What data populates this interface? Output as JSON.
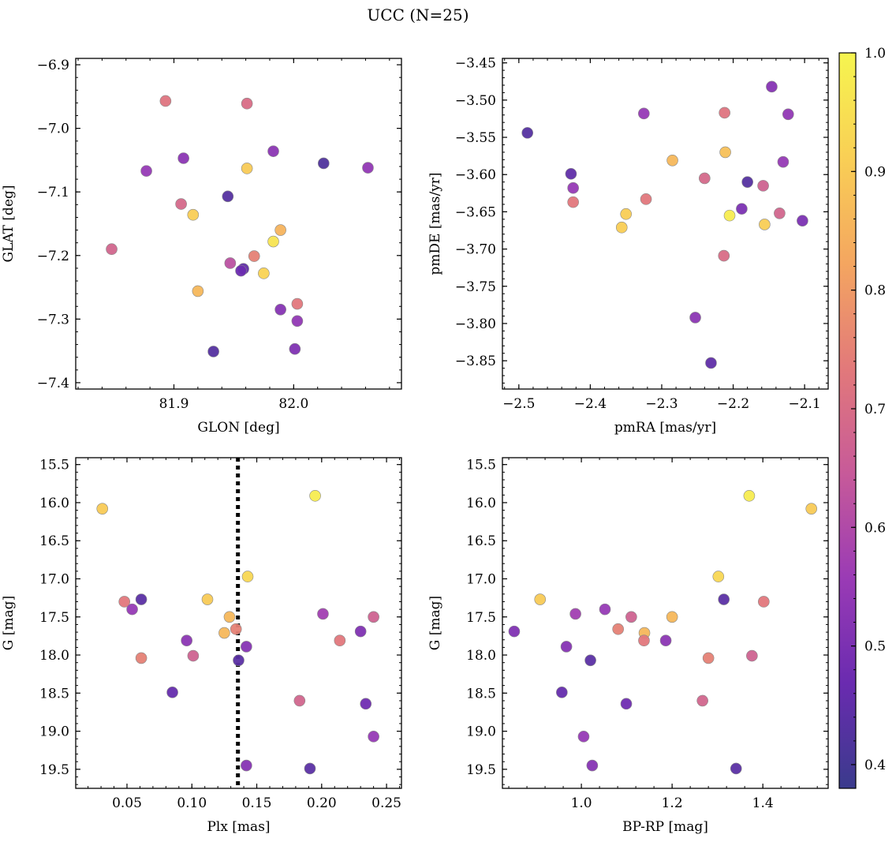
{
  "suptitle": "UCC (N=25)",
  "colormap": {
    "name": "plasma-truncated",
    "stops": [
      "#3a3b8c",
      "#6a2bb0",
      "#9a3bb5",
      "#c75a99",
      "#e2797a",
      "#f4a660",
      "#f9cf55",
      "#f6f54f"
    ],
    "range": [
      0.38,
      1.0
    ],
    "ticks": [
      "0.4",
      "0.5",
      "0.6",
      "0.7",
      "0.8",
      "0.9",
      "1.0"
    ]
  },
  "marker": {
    "edge_color": "#888888"
  },
  "chart_data": [
    {
      "type": "scatter",
      "xlabel": "GLON [deg]",
      "ylabel": "GLAT [deg]",
      "xlim": [
        81.818,
        82.09
      ],
      "ylim": [
        -7.41,
        -6.89
      ],
      "xticks": [
        "81.9",
        "82.0"
      ],
      "yticks": [
        "-6.9",
        "-7.0",
        "-7.1",
        "-7.2",
        "-7.3",
        "-7.4"
      ],
      "points": [
        {
          "x": 81.893,
          "y": -6.957,
          "c": 0.72
        },
        {
          "x": 81.961,
          "y": -6.961,
          "c": 0.7
        },
        {
          "x": 81.983,
          "y": -7.036,
          "c": 0.53
        },
        {
          "x": 82.025,
          "y": -7.055,
          "c": 0.42
        },
        {
          "x": 82.062,
          "y": -7.062,
          "c": 0.54
        },
        {
          "x": 81.961,
          "y": -7.063,
          "c": 0.9
        },
        {
          "x": 81.908,
          "y": -7.047,
          "c": 0.53
        },
        {
          "x": 81.877,
          "y": -7.067,
          "c": 0.55
        },
        {
          "x": 81.945,
          "y": -7.107,
          "c": 0.43
        },
        {
          "x": 81.906,
          "y": -7.119,
          "c": 0.69
        },
        {
          "x": 81.916,
          "y": -7.136,
          "c": 0.91
        },
        {
          "x": 81.989,
          "y": -7.16,
          "c": 0.85
        },
        {
          "x": 81.983,
          "y": -7.178,
          "c": 0.96
        },
        {
          "x": 81.848,
          "y": -7.19,
          "c": 0.68
        },
        {
          "x": 81.967,
          "y": -7.201,
          "c": 0.75
        },
        {
          "x": 81.947,
          "y": -7.212,
          "c": 0.62
        },
        {
          "x": 81.958,
          "y": -7.221,
          "c": 0.45
        },
        {
          "x": 81.956,
          "y": -7.224,
          "c": 0.47
        },
        {
          "x": 81.975,
          "y": -7.228,
          "c": 0.92
        },
        {
          "x": 81.92,
          "y": -7.256,
          "c": 0.86
        },
        {
          "x": 82.003,
          "y": -7.276,
          "c": 0.73
        },
        {
          "x": 81.989,
          "y": -7.285,
          "c": 0.52
        },
        {
          "x": 82.003,
          "y": -7.303,
          "c": 0.54
        },
        {
          "x": 82.001,
          "y": -7.347,
          "c": 0.51
        },
        {
          "x": 81.933,
          "y": -7.351,
          "c": 0.43
        }
      ]
    },
    {
      "type": "scatter",
      "xlabel": "pmRA [mas/yr]",
      "ylabel": "pmDE [mas/yr]",
      "xlim": [
        -2.523,
        -2.067
      ],
      "ylim": [
        -3.888,
        -3.444
      ],
      "xticks": [
        "-2.5",
        "-2.4",
        "-2.3",
        "-2.2",
        "-2.1"
      ],
      "yticks": [
        "-3.45",
        "-3.50",
        "-3.55",
        "-3.60",
        "-3.65",
        "-3.70",
        "-3.75",
        "-3.80",
        "-3.85"
      ],
      "points": [
        {
          "x": -2.488,
          "y": -3.544,
          "c": 0.43
        },
        {
          "x": -2.146,
          "y": -3.482,
          "c": 0.52
        },
        {
          "x": -2.123,
          "y": -3.519,
          "c": 0.54
        },
        {
          "x": -2.325,
          "y": -3.518,
          "c": 0.55
        },
        {
          "x": -2.212,
          "y": -3.517,
          "c": 0.72
        },
        {
          "x": -2.211,
          "y": -3.57,
          "c": 0.88
        },
        {
          "x": -2.285,
          "y": -3.581,
          "c": 0.86
        },
        {
          "x": -2.13,
          "y": -3.583,
          "c": 0.55
        },
        {
          "x": -2.427,
          "y": -3.599,
          "c": 0.45
        },
        {
          "x": -2.24,
          "y": -3.605,
          "c": 0.69
        },
        {
          "x": -2.18,
          "y": -3.61,
          "c": 0.43
        },
        {
          "x": -2.424,
          "y": -3.618,
          "c": 0.55
        },
        {
          "x": -2.158,
          "y": -3.615,
          "c": 0.67
        },
        {
          "x": -2.322,
          "y": -3.633,
          "c": 0.73
        },
        {
          "x": -2.424,
          "y": -3.637,
          "c": 0.73
        },
        {
          "x": -2.188,
          "y": -3.646,
          "c": 0.5
        },
        {
          "x": -2.35,
          "y": -3.653,
          "c": 0.91
        },
        {
          "x": -2.135,
          "y": -3.652,
          "c": 0.68
        },
        {
          "x": -2.205,
          "y": -3.655,
          "c": 0.98
        },
        {
          "x": -2.103,
          "y": -3.662,
          "c": 0.5
        },
        {
          "x": -2.356,
          "y": -3.671,
          "c": 0.91
        },
        {
          "x": -2.156,
          "y": -3.667,
          "c": 0.91
        },
        {
          "x": -2.213,
          "y": -3.709,
          "c": 0.7
        },
        {
          "x": -2.253,
          "y": -3.792,
          "c": 0.53
        },
        {
          "x": -2.231,
          "y": -3.853,
          "c": 0.45
        }
      ]
    },
    {
      "type": "scatter",
      "xlabel": "Plx [mas]",
      "ylabel": "G [mag]",
      "xlim": [
        0.0105,
        0.2615
      ],
      "ylim": [
        19.75,
        15.41
      ],
      "y_inverted": true,
      "xticks": [
        "0.05",
        "0.10",
        "0.15",
        "0.20",
        "0.25"
      ],
      "yticks": [
        "15.5",
        "16.0",
        "16.5",
        "17.0",
        "17.5",
        "18.0",
        "18.5",
        "19.0",
        "19.5"
      ],
      "vline": {
        "x": 0.1355,
        "style": "dotted",
        "color": "#000000"
      },
      "points": [
        {
          "x": 0.031,
          "y": 16.08,
          "c": 0.9
        },
        {
          "x": 0.195,
          "y": 15.91,
          "c": 0.98
        },
        {
          "x": 0.143,
          "y": 16.97,
          "c": 0.93
        },
        {
          "x": 0.048,
          "y": 17.3,
          "c": 0.73
        },
        {
          "x": 0.061,
          "y": 17.27,
          "c": 0.44
        },
        {
          "x": 0.112,
          "y": 17.27,
          "c": 0.9
        },
        {
          "x": 0.054,
          "y": 17.4,
          "c": 0.55
        },
        {
          "x": 0.201,
          "y": 17.46,
          "c": 0.57
        },
        {
          "x": 0.24,
          "y": 17.5,
          "c": 0.67
        },
        {
          "x": 0.129,
          "y": 17.5,
          "c": 0.86
        },
        {
          "x": 0.134,
          "y": 17.66,
          "c": 0.75
        },
        {
          "x": 0.125,
          "y": 17.71,
          "c": 0.86
        },
        {
          "x": 0.23,
          "y": 17.69,
          "c": 0.51
        },
        {
          "x": 0.214,
          "y": 17.81,
          "c": 0.73
        },
        {
          "x": 0.096,
          "y": 17.81,
          "c": 0.53
        },
        {
          "x": 0.142,
          "y": 17.89,
          "c": 0.52
        },
        {
          "x": 0.101,
          "y": 18.01,
          "c": 0.67
        },
        {
          "x": 0.061,
          "y": 18.04,
          "c": 0.75
        },
        {
          "x": 0.136,
          "y": 18.07,
          "c": 0.44
        },
        {
          "x": 0.085,
          "y": 18.49,
          "c": 0.46
        },
        {
          "x": 0.183,
          "y": 18.6,
          "c": 0.68
        },
        {
          "x": 0.234,
          "y": 18.64,
          "c": 0.48
        },
        {
          "x": 0.24,
          "y": 19.07,
          "c": 0.55
        },
        {
          "x": 0.142,
          "y": 19.45,
          "c": 0.52
        },
        {
          "x": 0.191,
          "y": 19.49,
          "c": 0.44
        }
      ]
    },
    {
      "type": "scatter",
      "xlabel": "BP-RP [mag]",
      "ylabel": "G [mag]",
      "xlim": [
        0.826,
        1.544
      ],
      "ylim": [
        19.75,
        15.41
      ],
      "y_inverted": true,
      "xticks": [
        "1.0",
        "1.2",
        "1.4"
      ],
      "yticks": [
        "15.5",
        "16.0",
        "16.5",
        "17.0",
        "17.5",
        "18.0",
        "18.5",
        "19.0",
        "19.5"
      ],
      "points": [
        {
          "x": 1.37,
          "y": 15.91,
          "c": 0.98
        },
        {
          "x": 1.507,
          "y": 16.08,
          "c": 0.9
        },
        {
          "x": 1.302,
          "y": 16.97,
          "c": 0.93
        },
        {
          "x": 0.909,
          "y": 17.27,
          "c": 0.9
        },
        {
          "x": 1.314,
          "y": 17.27,
          "c": 0.44
        },
        {
          "x": 1.402,
          "y": 17.3,
          "c": 0.73
        },
        {
          "x": 1.052,
          "y": 17.4,
          "c": 0.55
        },
        {
          "x": 0.987,
          "y": 17.46,
          "c": 0.57
        },
        {
          "x": 1.11,
          "y": 17.5,
          "c": 0.67
        },
        {
          "x": 1.2,
          "y": 17.5,
          "c": 0.86
        },
        {
          "x": 1.081,
          "y": 17.66,
          "c": 0.75
        },
        {
          "x": 1.139,
          "y": 17.71,
          "c": 0.86
        },
        {
          "x": 0.852,
          "y": 17.69,
          "c": 0.51
        },
        {
          "x": 1.138,
          "y": 17.81,
          "c": 0.73
        },
        {
          "x": 1.186,
          "y": 17.81,
          "c": 0.53
        },
        {
          "x": 0.967,
          "y": 17.89,
          "c": 0.52
        },
        {
          "x": 1.376,
          "y": 18.01,
          "c": 0.67
        },
        {
          "x": 1.28,
          "y": 18.04,
          "c": 0.75
        },
        {
          "x": 1.02,
          "y": 18.07,
          "c": 0.44
        },
        {
          "x": 0.957,
          "y": 18.49,
          "c": 0.46
        },
        {
          "x": 1.267,
          "y": 18.6,
          "c": 0.68
        },
        {
          "x": 1.099,
          "y": 18.64,
          "c": 0.48
        },
        {
          "x": 1.005,
          "y": 19.07,
          "c": 0.55
        },
        {
          "x": 1.024,
          "y": 19.45,
          "c": 0.52
        },
        {
          "x": 1.341,
          "y": 19.49,
          "c": 0.44
        }
      ]
    }
  ]
}
